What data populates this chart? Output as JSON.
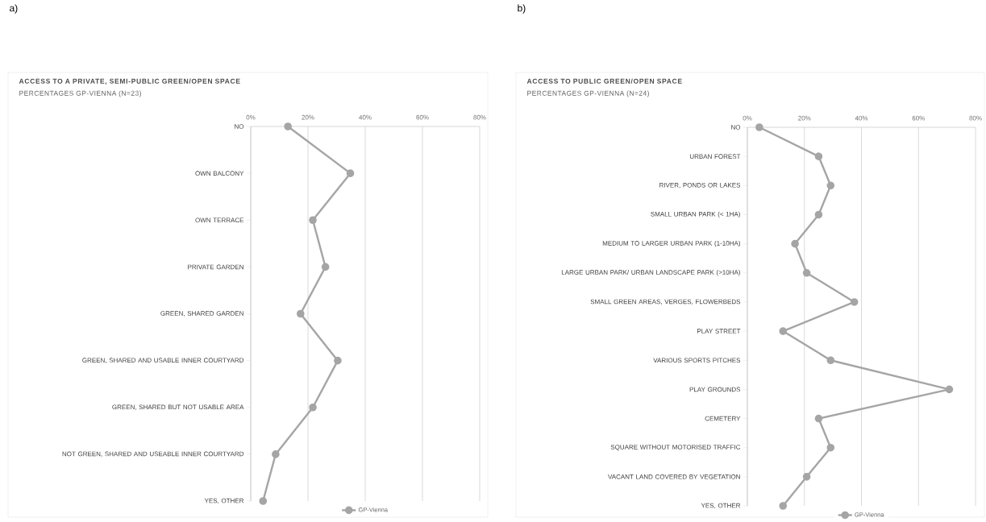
{
  "chart_data": [
    {
      "type": "line",
      "orientation": "horizontal",
      "title": "ACCESS TO A PRIVATE, SEMI-PUBLIC GREEN/OPEN SPACE",
      "subtitle": "PERCENTAGES GP-VIENNA (N=23)",
      "annotations": [
        "a)"
      ],
      "categories": [
        "NO",
        "OWN BALCONY",
        "OWN TERRACE",
        "PRIVATE GARDEN",
        "GREEN, SHARED GARDEN",
        "GREEN, SHARED AND USABLE INNER COURTYARD",
        "GREEN, SHARED BUT NOT USABLE AREA",
        "NOT GREEN, SHARED AND USEABLE INNER COURTYARD",
        "YES, OTHER"
      ],
      "series": [
        {
          "name": "GP-Vienna",
          "color": "#a5a5a5",
          "values": [
            13.0,
            34.8,
            21.7,
            26.1,
            17.4,
            30.4,
            21.7,
            8.7,
            4.3
          ]
        }
      ],
      "xlim": [
        0,
        80
      ],
      "xticks": [
        {
          "value": 0,
          "label": "0%"
        },
        {
          "value": 20,
          "label": "20%"
        },
        {
          "value": 40,
          "label": "40%"
        },
        {
          "value": 60,
          "label": "60%"
        },
        {
          "value": 80,
          "label": "80%"
        }
      ],
      "grid": "x",
      "legend": "bottom",
      "marker": "circle"
    },
    {
      "type": "line",
      "orientation": "horizontal",
      "title": "ACCESS TO PUBLIC GREEN/OPEN SPACE",
      "subtitle": "PERCENTAGES GP-VIENNA (N=24)",
      "annotations": [
        "b)"
      ],
      "categories": [
        "NO",
        "URBAN FOREST",
        "RIVER, PONDS OR LAKES",
        "SMALL URBAN PARK (< 1HA)",
        "MEDIUM TO LARGER URBAN PARK (1-10HA)",
        "LARGE URBAN PARK/ URBAN LANDSCAPE PARK (>10HA)",
        "SMALL GREEN AREAS, VERGES, FLOWERBEDS",
        "PLAY STREET",
        "VARIOUS SPORTS PITCHES",
        "PLAY GROUNDS",
        "CEMETERY",
        "SQUARE WITHOUT MOTORISED TRAFFIC",
        "VACANT LAND COVERED BY VEGETATION",
        "YES, OTHER"
      ],
      "series": [
        {
          "name": "GP-Vienna",
          "color": "#a5a5a5",
          "values": [
            4.2,
            25.0,
            29.2,
            25.0,
            16.7,
            20.8,
            37.5,
            12.5,
            29.2,
            70.8,
            25.0,
            29.2,
            20.8,
            12.5
          ]
        }
      ],
      "xlim": [
        0,
        80
      ],
      "xticks": [
        {
          "value": 0,
          "label": "0%"
        },
        {
          "value": 20,
          "label": "20%"
        },
        {
          "value": 40,
          "label": "40%"
        },
        {
          "value": 60,
          "label": "60%"
        },
        {
          "value": 80,
          "label": "80%"
        }
      ],
      "grid": "x",
      "legend": "bottom",
      "marker": "circle"
    }
  ]
}
